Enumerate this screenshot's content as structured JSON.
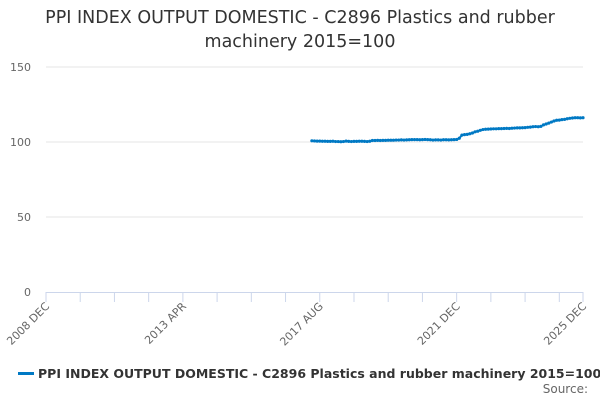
{
  "chart_data": {
    "type": "line",
    "title": "PPI INDEX OUTPUT DOMESTIC - C2896 Plastics and rubber machinery 2015=100",
    "xlabel": "",
    "ylabel": "",
    "x_range": [
      "2008 DEC",
      "2025 DEC"
    ],
    "x_tick_labels": [
      "2008 DEC",
      "2013 APR",
      "2017 AUG",
      "2021 DEC",
      "2025 DEC"
    ],
    "ylim": [
      0,
      150
    ],
    "y_ticks": [
      0,
      50,
      100,
      150
    ],
    "grid": "horizontal",
    "legend": "bottom",
    "color": "#0079c4",
    "series": [
      {
        "name": "PPI INDEX OUTPUT DOMESTIC - C2896 Plastics and rubber machinery 2015=100",
        "start": "2017 MAY",
        "frequency": "monthly",
        "values": [
          100.8,
          100.7,
          100.6,
          100.6,
          100.5,
          100.5,
          100.4,
          100.4,
          100.5,
          100.3,
          100.3,
          100.2,
          100.3,
          100.6,
          100.4,
          100.3,
          100.4,
          100.4,
          100.5,
          100.5,
          100.4,
          100.3,
          100.5,
          101.0,
          101.0,
          101.1,
          101.0,
          101.1,
          101.1,
          101.2,
          101.2,
          101.2,
          101.3,
          101.3,
          101.4,
          101.3,
          101.4,
          101.5,
          101.6,
          101.6,
          101.6,
          101.5,
          101.6,
          101.7,
          101.6,
          101.5,
          101.3,
          101.4,
          101.4,
          101.3,
          101.5,
          101.5,
          101.4,
          101.5,
          101.6,
          101.7,
          102.5,
          104.6,
          104.9,
          105.1,
          105.5,
          106.0,
          106.8,
          107.2,
          107.8,
          108.3,
          108.5,
          108.6,
          108.7,
          108.8,
          108.8,
          108.9,
          108.9,
          109.0,
          109.1,
          109.0,
          109.2,
          109.3,
          109.4,
          109.4,
          109.5,
          109.6,
          109.8,
          109.9,
          110.2,
          110.3,
          110.2,
          110.4,
          111.4,
          112.0,
          112.6,
          113.3,
          114.0,
          114.5,
          114.6,
          114.9,
          115.1,
          115.5,
          115.8,
          116.0,
          116.2,
          116.2,
          116.1,
          116.2
        ]
      }
    ]
  },
  "source_label": "Source:"
}
